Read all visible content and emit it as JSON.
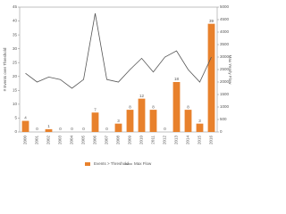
{
  "chart_data": {
    "type": "bar_line",
    "y_label": "# Events over Threshold",
    "y2_label": "Max Yearly Flow",
    "categories": [
      "2000",
      "2001",
      "2002",
      "2003",
      "2004",
      "2005",
      "2006",
      "2007",
      "2008",
      "2009",
      "2010",
      "2011",
      "2012",
      "2013",
      "2014",
      "2015",
      "2016"
    ],
    "series": [
      {
        "name": "Events > Threshold",
        "color": "#e8812c",
        "kind": "bar",
        "values": [
          4,
          0,
          1,
          0,
          0,
          0,
          7,
          0,
          3,
          8,
          12,
          8,
          0,
          18,
          8,
          3,
          39
        ]
      },
      {
        "name": "Max Flow",
        "color": "#555555",
        "kind": "line",
        "axis": "y2",
        "values": [
          2350,
          2000,
          2200,
          2100,
          1750,
          2100,
          4750,
          2100,
          2000,
          2500,
          2950,
          2400,
          3000,
          3250,
          2500,
          2000,
          3000
        ]
      }
    ],
    "ylim": [
      0,
      45
    ],
    "yticks": [
      0,
      5,
      10,
      15,
      20,
      25,
      30,
      35,
      40,
      45
    ],
    "y2lim": [
      0,
      5000
    ],
    "y2ticks": [
      0,
      500,
      1000,
      1500,
      2000,
      2500,
      3000,
      3500,
      4000,
      4500,
      5000
    ]
  }
}
